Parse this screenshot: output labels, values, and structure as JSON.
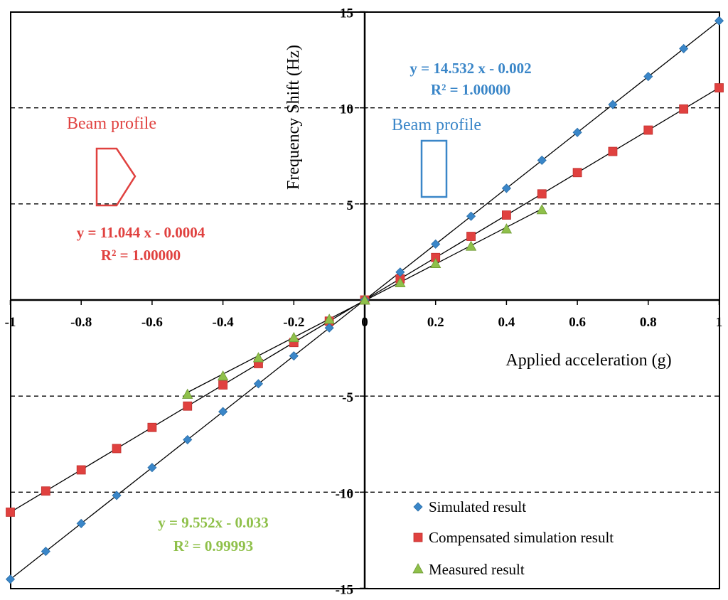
{
  "chart_data": {
    "type": "scatter",
    "xlabel": "Applied acceleration (g)",
    "ylabel": "Frequency Shift (Hz)",
    "xlim": [
      -1,
      1
    ],
    "ylim": [
      -15,
      15
    ],
    "x_ticks": [
      -1,
      -0.8,
      -0.6,
      -0.4,
      -0.2,
      0,
      0.2,
      0.4,
      0.6,
      0.8,
      1
    ],
    "x_tick_labels": [
      "-1",
      "-0.8",
      "-0.6",
      "-0.4",
      "-0.2",
      "0",
      "0.2",
      "0.4",
      "0.6",
      "0.8",
      "1"
    ],
    "y_ticks": [
      15,
      10,
      5,
      -5,
      -10,
      -15
    ],
    "y_tick_labels": [
      "15",
      "10",
      "5",
      "-5",
      "-10",
      "-15"
    ],
    "y_gridlines": [
      10,
      5,
      -5,
      -10
    ],
    "grid": "horizontal dashed",
    "legend_position": "bottom-right",
    "series": [
      {
        "name": "Simulated result",
        "marker": "diamond",
        "color": "#3a86c8",
        "x": [
          -1,
          -0.9,
          -0.8,
          -0.7,
          -0.6,
          -0.5,
          -0.4,
          -0.3,
          -0.2,
          -0.1,
          0,
          0.1,
          0.2,
          0.3,
          0.4,
          0.5,
          0.6,
          0.7,
          0.8,
          0.9,
          1
        ],
        "y": [
          -14.53,
          -13.08,
          -11.63,
          -10.17,
          -8.72,
          -7.27,
          -5.81,
          -4.36,
          -2.91,
          -1.45,
          0,
          1.45,
          2.91,
          4.36,
          5.81,
          7.27,
          8.72,
          10.17,
          11.63,
          13.08,
          14.53
        ],
        "fit": {
          "slope": 14.532,
          "intercept": -0.002,
          "x_range": [
            -1,
            1
          ]
        }
      },
      {
        "name": "Compensated simulation result",
        "marker": "square",
        "color": "#e0413f",
        "x": [
          -1,
          -0.9,
          -0.8,
          -0.7,
          -0.6,
          -0.5,
          -0.4,
          -0.3,
          -0.2,
          -0.1,
          0,
          0.1,
          0.2,
          0.3,
          0.4,
          0.5,
          0.6,
          0.7,
          0.8,
          0.9,
          1
        ],
        "y": [
          -11.04,
          -9.94,
          -8.84,
          -7.73,
          -6.63,
          -5.52,
          -4.42,
          -3.31,
          -2.21,
          -1.1,
          0,
          1.1,
          2.21,
          3.31,
          4.42,
          5.52,
          6.63,
          7.73,
          8.84,
          9.94,
          11.04
        ],
        "fit": {
          "slope": 11.044,
          "intercept": -0.0004,
          "x_range": [
            -1,
            1
          ]
        }
      },
      {
        "name": "Measured result",
        "marker": "triangle",
        "color": "#8fc04a",
        "x": [
          -0.5,
          -0.4,
          -0.3,
          -0.2,
          -0.1,
          0,
          0.1,
          0.2,
          0.3,
          0.4,
          0.5
        ],
        "y": [
          -4.9,
          -3.95,
          -3.0,
          -1.95,
          -1.0,
          0,
          0.9,
          1.9,
          2.8,
          3.7,
          4.7
        ],
        "fit": {
          "slope": 9.552,
          "intercept": -0.033,
          "x_range": [
            -0.5,
            0.5
          ]
        }
      }
    ],
    "annotations": [
      {
        "lines": [
          "y = 14.532 x - 0.002",
          "R² = 1.00000"
        ],
        "color": "#3a86c8"
      },
      {
        "lines": [
          "y = 11.044 x - 0.0004",
          "R² = 1.00000"
        ],
        "color": "#e0413f"
      },
      {
        "lines": [
          "y = 9.552x - 0.033",
          "R² = 0.99993"
        ],
        "color": "#8fc04a"
      }
    ],
    "beam_profiles": [
      {
        "label": "Beam profile",
        "color": "#e0413f",
        "shape": "pentagon"
      },
      {
        "label": "Beam profile",
        "color": "#3a86c8",
        "shape": "rectangle"
      }
    ]
  }
}
